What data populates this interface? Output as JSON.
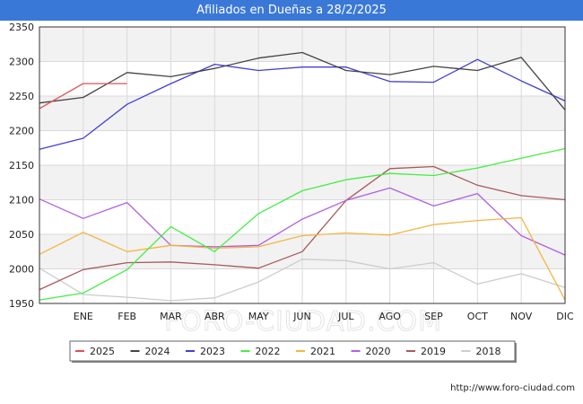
{
  "page": {
    "title": "Afiliados en Dueñas a 28/2/2025",
    "footer_url": "http://www.foro-ciudad.com",
    "watermark": "FORO-CIUDAD.COM"
  },
  "colors": {
    "title_bar": "#3a78d8",
    "band": "#f2f2f2",
    "grid": "#d9d9d9",
    "axis": "#333333"
  },
  "chart_data": {
    "type": "line",
    "title": "Afiliados en Dueñas a 28/2/2025",
    "xlabel": "",
    "ylabel": "",
    "categories": [
      "",
      "ENE",
      "FEB",
      "MAR",
      "ABR",
      "MAY",
      "JUN",
      "JUL",
      "AGO",
      "SEP",
      "OCT",
      "NOV",
      "DIC"
    ],
    "ylim": [
      1950,
      2350
    ],
    "yticks": [
      1950,
      2000,
      2050,
      2100,
      2150,
      2200,
      2250,
      2300,
      2350
    ],
    "grid": true,
    "legend_position": "bottom",
    "series": [
      {
        "name": "2025",
        "color": "#e05050",
        "values": [
          2232,
          2268,
          2268,
          null,
          null,
          null,
          null,
          null,
          null,
          null,
          null,
          null,
          null
        ]
      },
      {
        "name": "2024",
        "color": "#444444",
        "values": [
          2240,
          2248,
          2284,
          2278,
          2290,
          2305,
          2313,
          2287,
          2281,
          2293,
          2287,
          2306,
          2230
        ]
      },
      {
        "name": "2023",
        "color": "#4040d8",
        "values": [
          2173,
          2189,
          2238,
          2268,
          2296,
          2287,
          2292,
          2292,
          2271,
          2270,
          2303,
          2272,
          2243
        ]
      },
      {
        "name": "2022",
        "color": "#44ee44",
        "values": [
          1955,
          1965,
          1999,
          2061,
          2025,
          2080,
          2113,
          2129,
          2138,
          2135,
          2146,
          2160,
          2174
        ]
      },
      {
        "name": "2021",
        "color": "#f5b542",
        "values": [
          2021,
          2053,
          2025,
          2034,
          2030,
          2032,
          2048,
          2052,
          2049,
          2064,
          2070,
          2074,
          1955
        ]
      },
      {
        "name": "2020",
        "color": "#b060e0",
        "values": [
          2101,
          2073,
          2096,
          2034,
          2032,
          2034,
          2072,
          2099,
          2117,
          2091,
          2109,
          2048,
          2020
        ]
      },
      {
        "name": "2019",
        "color": "#a85a5a",
        "values": [
          1970,
          1999,
          2009,
          2010,
          2006,
          2001,
          2025,
          2099,
          2145,
          2148,
          2121,
          2106,
          2100
        ]
      },
      {
        "name": "2018",
        "color": "#cccccc",
        "values": [
          2001,
          1963,
          1959,
          1954,
          1958,
          1981,
          2014,
          2012,
          2000,
          2009,
          1978,
          1993,
          1973
        ]
      }
    ]
  }
}
